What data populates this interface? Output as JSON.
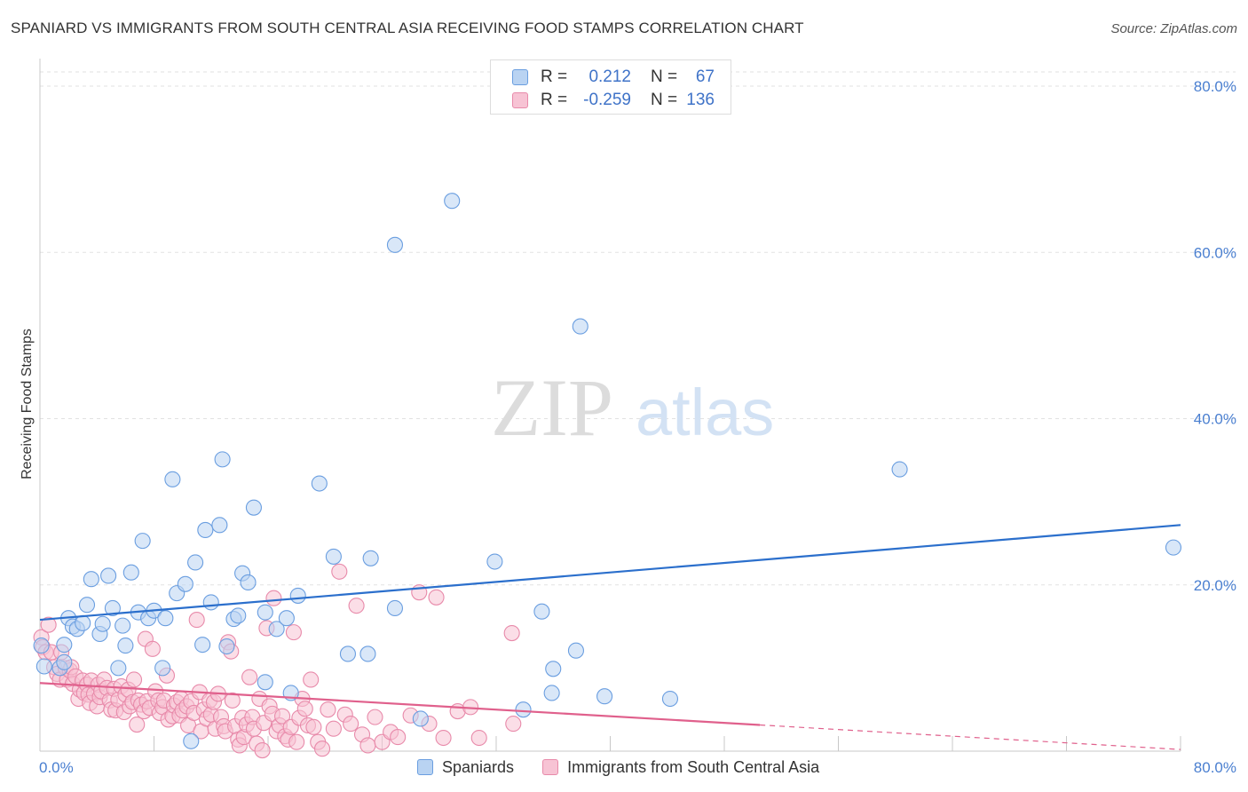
{
  "title": "SPANIARD VS IMMIGRANTS FROM SOUTH CENTRAL ASIA RECEIVING FOOD STAMPS CORRELATION CHART",
  "source": "Source: ZipAtlas.com",
  "watermark": {
    "zip": "ZIP",
    "atlas": "atlas"
  },
  "colors": {
    "blue_fill": "#b9d3f2",
    "blue_stroke": "#6a9ee0",
    "blue_line": "#2b6fcc",
    "pink_fill": "#f7c3d4",
    "pink_stroke": "#e88aaa",
    "pink_line": "#e0608c",
    "tick_text": "#4a7fd0",
    "grid": "#e2e2e2"
  },
  "legend_top": {
    "rows": [
      {
        "series": "blue",
        "r_label": "R =",
        "r_value": "0.212",
        "n_label": "N =",
        "n_value": "67"
      },
      {
        "series": "pink",
        "r_label": "R =",
        "r_value": "-0.259",
        "n_label": "N =",
        "n_value": "136"
      }
    ]
  },
  "legend_bottom": {
    "items": [
      {
        "series": "blue",
        "label": "Spaniards"
      },
      {
        "series": "pink",
        "label": "Immigrants from South Central Asia"
      }
    ]
  },
  "chart_data": {
    "type": "scatter",
    "title": "SPANIARD VS IMMIGRANTS FROM SOUTH CENTRAL ASIA RECEIVING FOOD STAMPS CORRELATION CHART",
    "xlabel": "",
    "ylabel": "Receiving Food Stamps",
    "xlim": [
      0,
      80
    ],
    "ylim": [
      0,
      80
    ],
    "x_ticks": [
      "0.0%",
      "80.0%"
    ],
    "y_ticks": [
      {
        "value": 20,
        "label": "20.0%"
      },
      {
        "value": 40,
        "label": "40.0%"
      },
      {
        "value": 60,
        "label": "60.0%"
      },
      {
        "value": 80,
        "label": "80.0%"
      }
    ],
    "grid": true,
    "legend_position": "bottom",
    "series": [
      {
        "name": "Spaniards",
        "color": "blue",
        "r": 0.212,
        "n": 67,
        "trend": {
          "x": [
            0,
            80
          ],
          "y": [
            15.8,
            27.2
          ],
          "dashed_from": null
        },
        "points": [
          [
            0.1,
            12.7
          ],
          [
            0.3,
            10.2
          ],
          [
            1.4,
            10.0
          ],
          [
            1.7,
            10.7
          ],
          [
            1.7,
            12.8
          ],
          [
            2.0,
            16.0
          ],
          [
            2.3,
            15.0
          ],
          [
            2.6,
            14.7
          ],
          [
            3.0,
            15.4
          ],
          [
            3.3,
            17.6
          ],
          [
            3.6,
            20.7
          ],
          [
            4.2,
            14.1
          ],
          [
            4.4,
            15.3
          ],
          [
            4.8,
            21.1
          ],
          [
            5.1,
            17.2
          ],
          [
            5.5,
            10.0
          ],
          [
            5.8,
            15.1
          ],
          [
            6.0,
            12.7
          ],
          [
            6.4,
            21.5
          ],
          [
            6.9,
            16.7
          ],
          [
            7.2,
            25.3
          ],
          [
            7.6,
            16.0
          ],
          [
            8.0,
            16.9
          ],
          [
            8.6,
            10.0
          ],
          [
            8.8,
            16.0
          ],
          [
            9.3,
            32.7
          ],
          [
            9.6,
            19.0
          ],
          [
            10.2,
            20.1
          ],
          [
            10.6,
            1.2
          ],
          [
            10.9,
            22.7
          ],
          [
            11.4,
            12.8
          ],
          [
            11.6,
            26.6
          ],
          [
            12.0,
            17.9
          ],
          [
            12.6,
            27.2
          ],
          [
            12.8,
            35.1
          ],
          [
            13.1,
            12.6
          ],
          [
            13.6,
            15.9
          ],
          [
            13.9,
            16.3
          ],
          [
            14.2,
            21.4
          ],
          [
            14.6,
            20.3
          ],
          [
            15.0,
            29.3
          ],
          [
            15.8,
            8.3
          ],
          [
            15.8,
            16.7
          ],
          [
            16.6,
            14.7
          ],
          [
            17.3,
            16.0
          ],
          [
            17.6,
            7.0
          ],
          [
            18.1,
            18.7
          ],
          [
            19.6,
            32.2
          ],
          [
            20.6,
            23.4
          ],
          [
            21.6,
            11.7
          ],
          [
            23.0,
            11.7
          ],
          [
            23.2,
            23.2
          ],
          [
            24.9,
            17.2
          ],
          [
            24.9,
            60.9
          ],
          [
            26.7,
            3.9
          ],
          [
            28.9,
            66.2
          ],
          [
            31.9,
            22.8
          ],
          [
            33.9,
            5.0
          ],
          [
            35.2,
            16.8
          ],
          [
            35.9,
            7.0
          ],
          [
            36.0,
            9.9
          ],
          [
            37.6,
            12.1
          ],
          [
            37.9,
            51.1
          ],
          [
            39.6,
            6.6
          ],
          [
            44.2,
            6.3
          ],
          [
            60.3,
            33.9
          ],
          [
            79.5,
            24.5
          ]
        ]
      },
      {
        "name": "Immigrants from South Central Asia",
        "color": "pink",
        "r": -0.259,
        "n": 136,
        "trend": {
          "x": [
            0,
            80
          ],
          "y": [
            8.2,
            0.2
          ],
          "dashed_from": 50.5
        },
        "points": [
          [
            0.1,
            13.7
          ],
          [
            0.2,
            12.5
          ],
          [
            0.4,
            11.9
          ],
          [
            0.6,
            15.2
          ],
          [
            0.8,
            11.9
          ],
          [
            1.0,
            10.1
          ],
          [
            1.2,
            9.3
          ],
          [
            1.4,
            8.6
          ],
          [
            1.5,
            11.9
          ],
          [
            1.8,
            10.0
          ],
          [
            1.9,
            8.6
          ],
          [
            2.1,
            9.7
          ],
          [
            2.2,
            10.1
          ],
          [
            2.3,
            8.1
          ],
          [
            2.5,
            9.0
          ],
          [
            2.7,
            6.3
          ],
          [
            2.8,
            7.4
          ],
          [
            3.0,
            8.5
          ],
          [
            3.1,
            7.0
          ],
          [
            3.3,
            8.0
          ],
          [
            3.4,
            6.8
          ],
          [
            3.5,
            5.8
          ],
          [
            3.6,
            8.5
          ],
          [
            3.8,
            6.9
          ],
          [
            4.0,
            5.4
          ],
          [
            4.1,
            8.0
          ],
          [
            4.2,
            6.5
          ],
          [
            4.3,
            7.2
          ],
          [
            4.5,
            8.6
          ],
          [
            4.7,
            7.6
          ],
          [
            4.9,
            6.1
          ],
          [
            5.0,
            5.0
          ],
          [
            5.2,
            7.5
          ],
          [
            5.3,
            4.9
          ],
          [
            5.5,
            6.2
          ],
          [
            5.7,
            7.8
          ],
          [
            5.9,
            4.7
          ],
          [
            6.0,
            6.8
          ],
          [
            6.2,
            7.4
          ],
          [
            6.3,
            5.4
          ],
          [
            6.5,
            5.9
          ],
          [
            6.6,
            8.6
          ],
          [
            6.8,
            3.2
          ],
          [
            6.9,
            6.1
          ],
          [
            7.1,
            5.6
          ],
          [
            7.3,
            4.8
          ],
          [
            7.4,
            13.5
          ],
          [
            7.5,
            6.0
          ],
          [
            7.7,
            5.2
          ],
          [
            7.9,
            12.3
          ],
          [
            8.1,
            7.2
          ],
          [
            8.3,
            6.1
          ],
          [
            8.4,
            4.6
          ],
          [
            8.6,
            5.3
          ],
          [
            8.7,
            6.1
          ],
          [
            8.9,
            9.1
          ],
          [
            9.0,
            3.8
          ],
          [
            9.3,
            4.2
          ],
          [
            9.4,
            5.5
          ],
          [
            9.6,
            5.9
          ],
          [
            9.8,
            4.3
          ],
          [
            9.9,
            6.3
          ],
          [
            10.0,
            4.9
          ],
          [
            10.3,
            5.4
          ],
          [
            10.4,
            3.1
          ],
          [
            10.6,
            6.0
          ],
          [
            10.8,
            4.6
          ],
          [
            11.0,
            15.8
          ],
          [
            11.2,
            7.1
          ],
          [
            11.3,
            2.4
          ],
          [
            11.5,
            5.0
          ],
          [
            11.7,
            3.9
          ],
          [
            11.9,
            6.1
          ],
          [
            12.0,
            4.4
          ],
          [
            12.2,
            5.9
          ],
          [
            12.3,
            2.7
          ],
          [
            12.5,
            6.9
          ],
          [
            12.7,
            4.1
          ],
          [
            12.9,
            3.0
          ],
          [
            13.0,
            2.4
          ],
          [
            13.2,
            13.1
          ],
          [
            13.4,
            12.0
          ],
          [
            13.5,
            6.1
          ],
          [
            13.7,
            3.0
          ],
          [
            13.9,
            1.4
          ],
          [
            14.0,
            0.7
          ],
          [
            14.2,
            4.0
          ],
          [
            14.3,
            1.7
          ],
          [
            14.5,
            3.2
          ],
          [
            14.7,
            8.9
          ],
          [
            14.9,
            4.1
          ],
          [
            15.0,
            2.7
          ],
          [
            15.2,
            0.9
          ],
          [
            15.4,
            6.3
          ],
          [
            15.6,
            0.1
          ],
          [
            15.7,
            3.4
          ],
          [
            15.9,
            14.8
          ],
          [
            16.1,
            5.4
          ],
          [
            16.3,
            4.5
          ],
          [
            16.4,
            18.4
          ],
          [
            16.6,
            2.4
          ],
          [
            16.8,
            3.1
          ],
          [
            17.0,
            4.2
          ],
          [
            17.2,
            1.8
          ],
          [
            17.4,
            1.4
          ],
          [
            17.6,
            2.9
          ],
          [
            17.8,
            14.3
          ],
          [
            18.0,
            1.1
          ],
          [
            18.2,
            4.0
          ],
          [
            18.4,
            6.3
          ],
          [
            18.6,
            5.1
          ],
          [
            18.8,
            3.1
          ],
          [
            19.0,
            8.6
          ],
          [
            19.2,
            2.9
          ],
          [
            19.5,
            1.1
          ],
          [
            19.8,
            0.3
          ],
          [
            20.2,
            5.0
          ],
          [
            20.6,
            2.7
          ],
          [
            21.0,
            21.6
          ],
          [
            21.4,
            4.4
          ],
          [
            21.8,
            3.3
          ],
          [
            22.2,
            17.5
          ],
          [
            22.6,
            2.0
          ],
          [
            23.0,
            0.7
          ],
          [
            23.5,
            4.1
          ],
          [
            24.0,
            1.1
          ],
          [
            24.6,
            2.3
          ],
          [
            25.1,
            1.7
          ],
          [
            26.0,
            4.3
          ],
          [
            26.6,
            19.1
          ],
          [
            27.3,
            3.3
          ],
          [
            27.8,
            18.5
          ],
          [
            28.3,
            1.6
          ],
          [
            29.3,
            4.8
          ],
          [
            30.2,
            5.3
          ],
          [
            30.8,
            1.6
          ],
          [
            33.1,
            14.2
          ],
          [
            33.2,
            3.3
          ]
        ]
      }
    ]
  }
}
